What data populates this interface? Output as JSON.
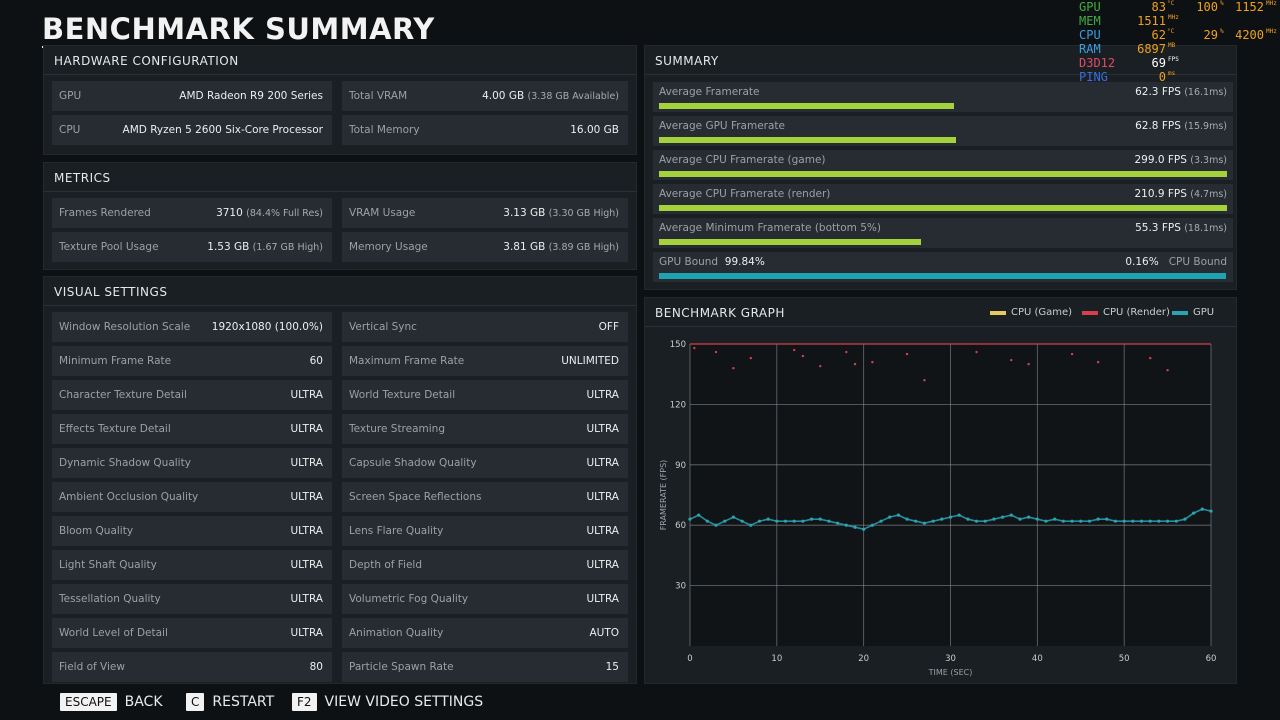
{
  "title": "BENCHMARK SUMMARY",
  "hardware": {
    "header": "HARDWARE CONFIGURATION",
    "items": [
      {
        "label": "GPU",
        "value": "AMD Radeon R9 200 Series",
        "sub": ""
      },
      {
        "label": "Total VRAM",
        "value": "4.00 GB",
        "sub": "(3.38 GB Available)"
      },
      {
        "label": "CPU",
        "value": "AMD Ryzen 5 2600 Six-Core Processor",
        "sub": ""
      },
      {
        "label": "Total Memory",
        "value": "16.00 GB",
        "sub": ""
      }
    ]
  },
  "metrics": {
    "header": "METRICS",
    "items": [
      {
        "label": "Frames Rendered",
        "value": "3710",
        "sub": "(84.4% Full Res)"
      },
      {
        "label": "VRAM Usage",
        "value": "3.13 GB",
        "sub": "(3.30 GB High)"
      },
      {
        "label": "Texture Pool Usage",
        "value": "1.53 GB",
        "sub": "(1.67 GB High)"
      },
      {
        "label": "Memory Usage",
        "value": "3.81 GB",
        "sub": "(3.89 GB High)"
      }
    ]
  },
  "visual": {
    "header": "VISUAL SETTINGS",
    "items": [
      {
        "label": "Window Resolution Scale",
        "value": "1920x1080 (100.0%)"
      },
      {
        "label": "Vertical Sync",
        "value": "OFF"
      },
      {
        "label": "Minimum Frame Rate",
        "value": "60"
      },
      {
        "label": "Maximum Frame Rate",
        "value": "UNLIMITED"
      },
      {
        "label": "Character Texture Detail",
        "value": "ULTRA"
      },
      {
        "label": "World Texture Detail",
        "value": "ULTRA"
      },
      {
        "label": "Effects Texture Detail",
        "value": "ULTRA"
      },
      {
        "label": "Texture Streaming",
        "value": "ULTRA"
      },
      {
        "label": "Dynamic Shadow Quality",
        "value": "ULTRA"
      },
      {
        "label": "Capsule Shadow Quality",
        "value": "ULTRA"
      },
      {
        "label": "Ambient Occlusion Quality",
        "value": "ULTRA"
      },
      {
        "label": "Screen Space Reflections",
        "value": "ULTRA"
      },
      {
        "label": "Bloom Quality",
        "value": "ULTRA"
      },
      {
        "label": "Lens Flare Quality",
        "value": "ULTRA"
      },
      {
        "label": "Light Shaft Quality",
        "value": "ULTRA"
      },
      {
        "label": "Depth of Field",
        "value": "ULTRA"
      },
      {
        "label": "Tessellation Quality",
        "value": "ULTRA"
      },
      {
        "label": "Volumetric Fog Quality",
        "value": "ULTRA"
      },
      {
        "label": "World Level of Detail",
        "value": "ULTRA"
      },
      {
        "label": "Animation Quality",
        "value": "AUTO"
      },
      {
        "label": "Field of View",
        "value": "80"
      },
      {
        "label": "Particle Spawn Rate",
        "value": "15"
      }
    ]
  },
  "summary": {
    "header": "SUMMARY",
    "rows": [
      {
        "label": "Average Framerate",
        "value": "62.3 FPS",
        "sub": "(16.1ms)",
        "fill": 0.52
      },
      {
        "label": "Average GPU Framerate",
        "value": "62.8 FPS",
        "sub": "(15.9ms)",
        "fill": 0.523
      },
      {
        "label": "Average CPU Framerate (game)",
        "value": "299.0 FPS",
        "sub": "(3.3ms)",
        "fill": 1.0
      },
      {
        "label": "Average CPU Framerate (render)",
        "value": "210.9 FPS",
        "sub": "(4.7ms)",
        "fill": 1.0
      },
      {
        "label": "Average Minimum Framerate (bottom 5%)",
        "value": "55.3 FPS",
        "sub": "(18.1ms)",
        "fill": 0.461
      }
    ],
    "bound": {
      "gpu_label": "GPU Bound",
      "gpu_value": "99.84%",
      "cpu_label": "CPU Bound",
      "cpu_value": "0.16%",
      "fill": 0.9984
    }
  },
  "graph": {
    "header": "BENCHMARK GRAPH",
    "legend": [
      {
        "name": "CPU (Game)",
        "color": "#e8c85a"
      },
      {
        "name": "CPU (Render)",
        "color": "#d6404a"
      },
      {
        "name": "GPU",
        "color": "#2aa3b3"
      }
    ]
  },
  "chart_data": {
    "type": "scatter",
    "xlabel": "TIME (SEC)",
    "ylabel": "FRAMERATE (FPS)",
    "xlim": [
      0,
      60
    ],
    "ylim": [
      0,
      150
    ],
    "xticks": [
      0,
      10,
      20,
      30,
      40,
      50,
      60
    ],
    "yticks": [
      30,
      60,
      90,
      120,
      150
    ],
    "grid": true,
    "series": [
      {
        "name": "GPU",
        "color": "#2aa3b3",
        "x": [
          0,
          1,
          2,
          3,
          4,
          5,
          6,
          7,
          8,
          9,
          10,
          11,
          12,
          13,
          14,
          15,
          16,
          17,
          18,
          19,
          20,
          21,
          22,
          23,
          24,
          25,
          26,
          27,
          28,
          29,
          30,
          31,
          32,
          33,
          34,
          35,
          36,
          37,
          38,
          39,
          40,
          41,
          42,
          43,
          44,
          45,
          46,
          47,
          48,
          49,
          50,
          51,
          52,
          53,
          54,
          55,
          56,
          57,
          58,
          59,
          60
        ],
        "y": [
          63,
          65,
          62,
          60,
          62,
          64,
          62,
          60,
          62,
          63,
          62,
          62,
          62,
          62,
          63,
          63,
          62,
          61,
          60,
          59,
          58,
          60,
          62,
          64,
          65,
          63,
          62,
          61,
          62,
          63,
          64,
          65,
          63,
          62,
          62,
          63,
          64,
          65,
          63,
          64,
          63,
          62,
          63,
          62,
          62,
          62,
          62,
          63,
          63,
          62,
          62,
          62,
          62,
          62,
          62,
          62,
          62,
          63,
          66,
          68,
          67
        ]
      },
      {
        "name": "CPU (Render)",
        "color": "#d6404a",
        "x": [
          0.5,
          3,
          5,
          7,
          12,
          13,
          15,
          18,
          19,
          21,
          25,
          27,
          33,
          37,
          39,
          44,
          47,
          53,
          55
        ],
        "y": [
          148,
          146,
          138,
          143,
          147,
          144,
          139,
          146,
          140,
          141,
          145,
          132,
          146,
          142,
          140,
          145,
          141,
          143,
          137
        ]
      },
      {
        "name": "CPU (Game)",
        "color": "#e8c85a",
        "x": [
          0,
          60
        ],
        "y": [
          150,
          150
        ]
      }
    ]
  },
  "footer": [
    {
      "key": "ESCAPE",
      "label": "BACK"
    },
    {
      "key": "C",
      "label": "RESTART"
    },
    {
      "key": "F2",
      "label": "VIEW VIDEO SETTINGS"
    }
  ],
  "osd": {
    "gpu": {
      "label": "GPU",
      "v1": "83",
      "u1": "°C",
      "v2": "100",
      "u2": "%",
      "v3": "1152",
      "u3": "MHz"
    },
    "mem": {
      "label": "MEM",
      "v1": "1511",
      "u1": "MHz"
    },
    "cpu": {
      "label": "CPU",
      "v1": "62",
      "u1": "°C",
      "v2": "29",
      "u2": "%",
      "v3": "4200",
      "u3": "MHz"
    },
    "ram": {
      "label": "RAM",
      "v1": "6897",
      "u1": "MB"
    },
    "d3d": {
      "label": "D3D12",
      "v1": "69",
      "u1": "FPS"
    },
    "ping": {
      "label": "PING",
      "v1": "0",
      "u1": "ms"
    }
  }
}
